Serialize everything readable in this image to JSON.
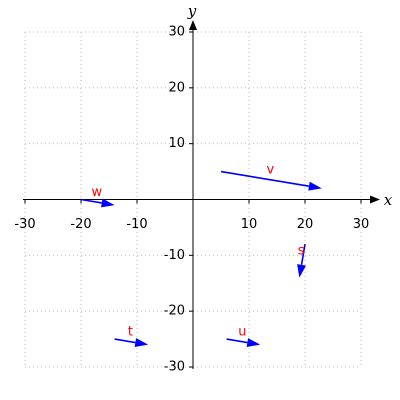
{
  "chart_data": {
    "type": "vector",
    "x_label": "x",
    "y_label": "y",
    "xlim": [
      -30,
      30
    ],
    "ylim": [
      -30,
      30
    ],
    "xticks": [
      -30,
      -20,
      -10,
      10,
      20,
      30
    ],
    "yticks": [
      -30,
      -20,
      -10,
      10,
      20,
      30
    ],
    "grid": true,
    "color": "#0000ff",
    "label_color": "#ff0000",
    "vectors": [
      {
        "name": "v",
        "start": [
          5,
          5
        ],
        "end": [
          23,
          2
        ]
      },
      {
        "name": "w",
        "start": [
          -20,
          0
        ],
        "end": [
          -14,
          -1
        ]
      },
      {
        "name": "s",
        "start": [
          20,
          -8
        ],
        "end": [
          19,
          -14
        ]
      },
      {
        "name": "t",
        "start": [
          -14,
          -25
        ],
        "end": [
          -8,
          -26
        ]
      },
      {
        "name": "u",
        "start": [
          6,
          -25
        ],
        "end": [
          12,
          -26
        ]
      }
    ]
  }
}
